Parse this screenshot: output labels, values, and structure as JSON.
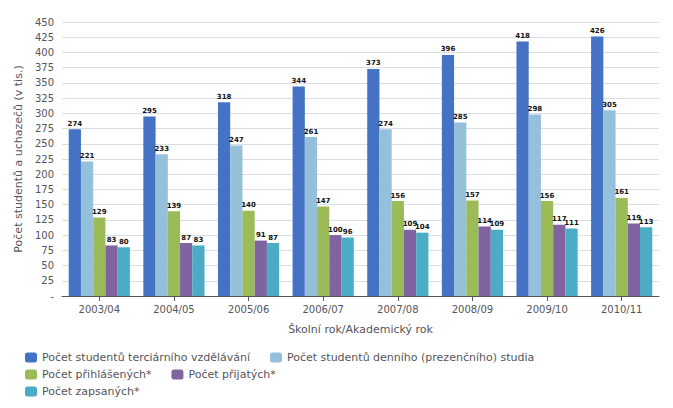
{
  "chart_data": {
    "type": "bar",
    "categories": [
      "2003/04",
      "2004/05",
      "2005/06",
      "2006/07",
      "2007/08",
      "2008/09",
      "2009/10",
      "2010/11"
    ],
    "series": [
      {
        "name": "Počet studentů terciárního vzdělávání",
        "color": "#4472C4",
        "values": [
          274,
          295,
          318,
          344,
          373,
          396,
          418,
          426
        ]
      },
      {
        "name": "Počet studentů denního (prezenčního) studia",
        "color": "#95C0DC",
        "values": [
          221,
          233,
          247,
          261,
          274,
          285,
          298,
          305
        ]
      },
      {
        "name": "Počet přihlášených*",
        "color": "#9BBB59",
        "values": [
          129,
          139,
          140,
          147,
          156,
          157,
          156,
          161
        ]
      },
      {
        "name": "Počet přijatých*",
        "color": "#8064A2",
        "values": [
          83,
          87,
          91,
          100,
          109,
          114,
          117,
          119
        ]
      },
      {
        "name": "Počet zapsaných*",
        "color": "#4BACC6",
        "values": [
          80,
          83,
          87,
          96,
          104,
          109,
          111,
          113
        ]
      }
    ],
    "xlabel": "Školní rok/Akademický rok",
    "ylabel": "Počet studentů a uchazečů (v tis.)",
    "ylim": [
      0,
      450
    ],
    "yticks": [
      {
        "value": 0,
        "label": "-"
      },
      25,
      50,
      75,
      100,
      125,
      150,
      175,
      200,
      225,
      250,
      275,
      300,
      325,
      350,
      375,
      400,
      425,
      450
    ],
    "grid": true,
    "data_labels": true,
    "legend": "lower left"
  }
}
